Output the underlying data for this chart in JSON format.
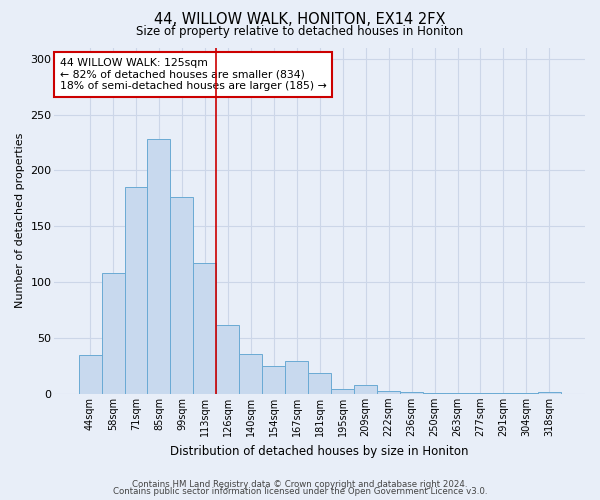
{
  "title": "44, WILLOW WALK, HONITON, EX14 2FX",
  "subtitle": "Size of property relative to detached houses in Honiton",
  "xlabel": "Distribution of detached houses by size in Honiton",
  "ylabel": "Number of detached properties",
  "bar_labels": [
    "44sqm",
    "58sqm",
    "71sqm",
    "85sqm",
    "99sqm",
    "113sqm",
    "126sqm",
    "140sqm",
    "154sqm",
    "167sqm",
    "181sqm",
    "195sqm",
    "209sqm",
    "222sqm",
    "236sqm",
    "250sqm",
    "263sqm",
    "277sqm",
    "291sqm",
    "304sqm",
    "318sqm"
  ],
  "bar_heights": [
    35,
    108,
    185,
    228,
    176,
    117,
    62,
    36,
    25,
    29,
    19,
    4,
    8,
    3,
    2,
    1,
    1,
    1,
    1,
    1,
    2
  ],
  "bar_color": "#c8d9ee",
  "bar_edge_color": "#6aaad4",
  "vline_index": 6,
  "vline_color": "#cc0000",
  "annotation_title": "44 WILLOW WALK: 125sqm",
  "annotation_line1": "← 82% of detached houses are smaller (834)",
  "annotation_line2": "18% of semi-detached houses are larger (185) →",
  "annotation_box_color": "#ffffff",
  "annotation_box_edge": "#cc0000",
  "ylim": [
    0,
    310
  ],
  "yticks": [
    0,
    50,
    100,
    150,
    200,
    250,
    300
  ],
  "grid_color": "#ccd6e8",
  "bg_color": "#e8eef8",
  "footer1": "Contains HM Land Registry data © Crown copyright and database right 2024.",
  "footer2": "Contains public sector information licensed under the Open Government Licence v3.0."
}
